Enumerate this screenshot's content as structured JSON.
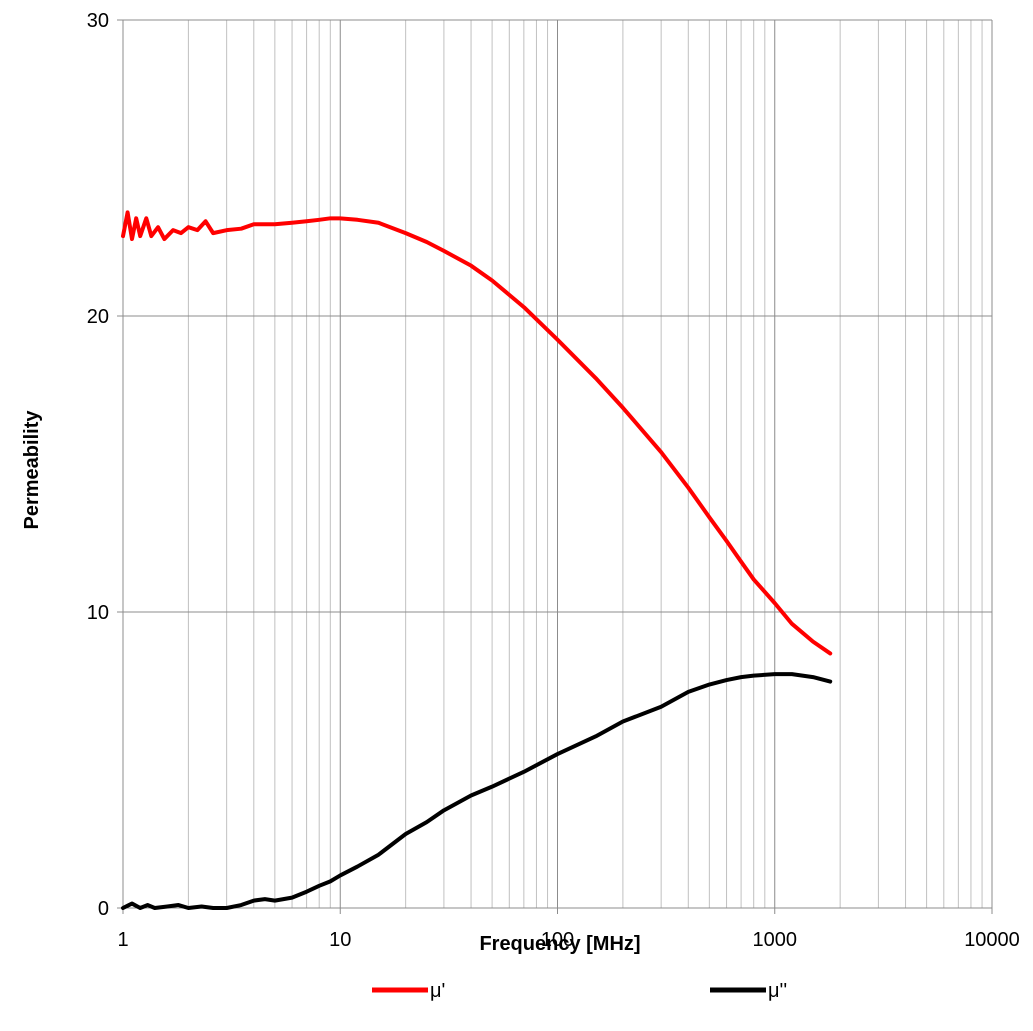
{
  "chart_data": {
    "type": "line",
    "title": "",
    "xlabel": "Frequency [MHz]",
    "ylabel": "Permeability",
    "x_scale": "log",
    "xlim": [
      1,
      10000
    ],
    "ylim": [
      0,
      30
    ],
    "x_ticks": [
      1,
      10,
      100,
      1000,
      10000
    ],
    "x_tick_labels": [
      "1",
      "10",
      "100",
      "1000",
      "10000"
    ],
    "y_ticks": [
      0,
      10,
      20,
      30
    ],
    "y_tick_labels": [
      "0",
      "10",
      "20",
      "30"
    ],
    "grid": true,
    "legend_position": "bottom",
    "series": [
      {
        "name": "μ'",
        "color": "#ff0000",
        "points": [
          [
            1.0,
            22.7
          ],
          [
            1.05,
            23.5
          ],
          [
            1.1,
            22.6
          ],
          [
            1.15,
            23.3
          ],
          [
            1.2,
            22.7
          ],
          [
            1.28,
            23.3
          ],
          [
            1.35,
            22.7
          ],
          [
            1.45,
            23.0
          ],
          [
            1.55,
            22.6
          ],
          [
            1.7,
            22.9
          ],
          [
            1.85,
            22.8
          ],
          [
            2.0,
            23.0
          ],
          [
            2.2,
            22.9
          ],
          [
            2.4,
            23.2
          ],
          [
            2.6,
            22.8
          ],
          [
            3.0,
            22.9
          ],
          [
            3.5,
            22.95
          ],
          [
            4.0,
            23.1
          ],
          [
            5.0,
            23.1
          ],
          [
            6.0,
            23.15
          ],
          [
            7.0,
            23.2
          ],
          [
            8.0,
            23.25
          ],
          [
            9.0,
            23.3
          ],
          [
            10.0,
            23.3
          ],
          [
            12.0,
            23.25
          ],
          [
            15.0,
            23.15
          ],
          [
            20.0,
            22.8
          ],
          [
            25.0,
            22.5
          ],
          [
            30.0,
            22.2
          ],
          [
            40.0,
            21.7
          ],
          [
            50.0,
            21.2
          ],
          [
            70.0,
            20.3
          ],
          [
            100.0,
            19.2
          ],
          [
            150.0,
            17.9
          ],
          [
            200.0,
            16.9
          ],
          [
            300.0,
            15.4
          ],
          [
            400.0,
            14.2
          ],
          [
            500.0,
            13.2
          ],
          [
            600.0,
            12.4
          ],
          [
            700.0,
            11.7
          ],
          [
            800.0,
            11.1
          ],
          [
            1000.0,
            10.3
          ],
          [
            1200.0,
            9.6
          ],
          [
            1500.0,
            9.0
          ],
          [
            1800.0,
            8.6
          ]
        ]
      },
      {
        "name": "μ''",
        "color": "#000000",
        "points": [
          [
            1.0,
            0.0
          ],
          [
            1.1,
            0.15
          ],
          [
            1.2,
            0.0
          ],
          [
            1.3,
            0.1
          ],
          [
            1.4,
            0.0
          ],
          [
            1.6,
            0.05
          ],
          [
            1.8,
            0.1
          ],
          [
            2.0,
            0.0
          ],
          [
            2.3,
            0.05
          ],
          [
            2.6,
            0.0
          ],
          [
            3.0,
            0.0
          ],
          [
            3.5,
            0.1
          ],
          [
            4.0,
            0.25
          ],
          [
            4.5,
            0.3
          ],
          [
            5.0,
            0.25
          ],
          [
            6.0,
            0.35
          ],
          [
            7.0,
            0.55
          ],
          [
            8.0,
            0.75
          ],
          [
            9.0,
            0.9
          ],
          [
            10.0,
            1.1
          ],
          [
            12.0,
            1.4
          ],
          [
            15.0,
            1.8
          ],
          [
            20.0,
            2.5
          ],
          [
            25.0,
            2.9
          ],
          [
            30.0,
            3.3
          ],
          [
            40.0,
            3.8
          ],
          [
            50.0,
            4.1
          ],
          [
            70.0,
            4.6
          ],
          [
            100.0,
            5.2
          ],
          [
            150.0,
            5.8
          ],
          [
            200.0,
            6.3
          ],
          [
            300.0,
            6.8
          ],
          [
            400.0,
            7.3
          ],
          [
            500.0,
            7.55
          ],
          [
            600.0,
            7.7
          ],
          [
            700.0,
            7.8
          ],
          [
            800.0,
            7.85
          ],
          [
            1000.0,
            7.9
          ],
          [
            1200.0,
            7.9
          ],
          [
            1500.0,
            7.8
          ],
          [
            1800.0,
            7.65
          ]
        ]
      }
    ]
  }
}
